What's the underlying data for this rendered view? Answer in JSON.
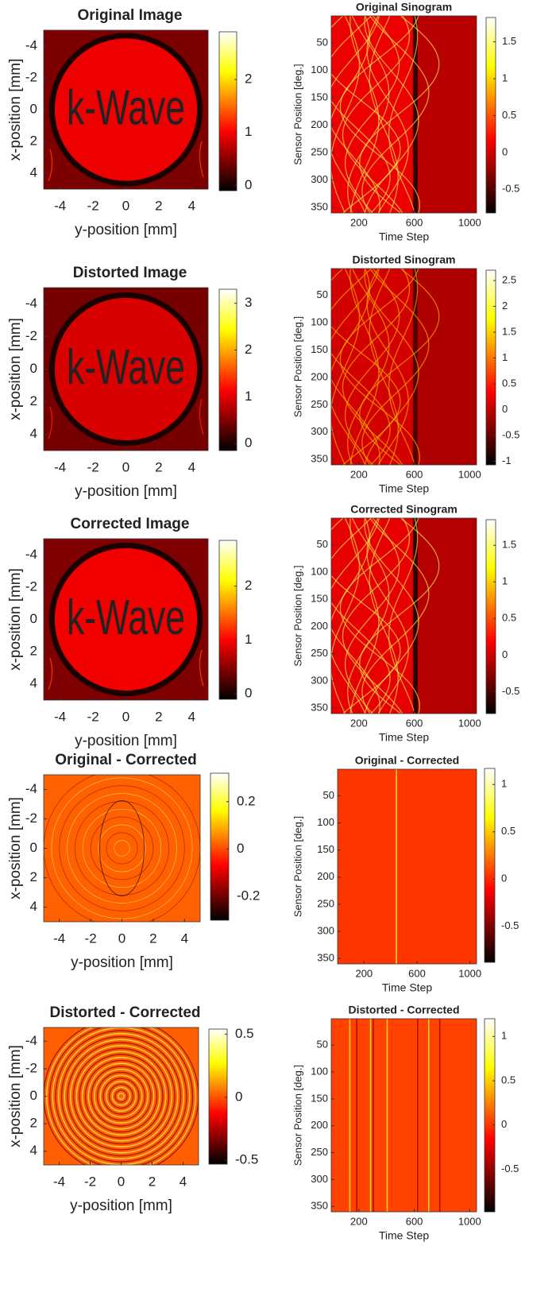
{
  "chart_data": [
    {
      "type": "image",
      "title": "Original Image",
      "annotation": "k-Wave",
      "xlabel": "y-position [mm]",
      "ylabel": "x-position [mm]",
      "xlim": [
        -5,
        5
      ],
      "ylim": [
        -5,
        5
      ],
      "yreverse": true,
      "xticks": [
        -4,
        -2,
        0,
        2,
        4
      ],
      "yticks": [
        -4,
        -2,
        0,
        2,
        4
      ],
      "colormap": "hot",
      "clim": [
        -0.1,
        2.9
      ],
      "cticks": [
        0,
        1,
        2
      ]
    },
    {
      "type": "image",
      "title": "Original Sinogram",
      "xlabel": "Time Step",
      "ylabel": "Sensor Position [deg.]",
      "xlim": [
        0,
        1050
      ],
      "ylim": [
        1,
        360
      ],
      "yreverse": true,
      "xticks": [
        200,
        600,
        1000
      ],
      "yticks": [
        50,
        100,
        150,
        200,
        250,
        300,
        350
      ],
      "colormap": "hot",
      "clim": [
        -0.82,
        1.83
      ],
      "cticks": [
        -0.5,
        0,
        0.5,
        1,
        1.5
      ]
    },
    {
      "type": "image",
      "title": "Distorted Image",
      "annotation": "k-Wave",
      "xlabel": "y-position [mm]",
      "ylabel": "x-position [mm]",
      "xlim": [
        -5,
        5
      ],
      "ylim": [
        -5,
        5
      ],
      "yreverse": true,
      "xticks": [
        -4,
        -2,
        0,
        2,
        4
      ],
      "yticks": [
        -4,
        -2,
        0,
        2,
        4
      ],
      "colormap": "hot",
      "clim": [
        -0.15,
        3.3
      ],
      "cticks": [
        0,
        1,
        2,
        3
      ]
    },
    {
      "type": "image",
      "title": "Distorted Sinogram",
      "xlabel": "Time Step",
      "ylabel": "Sensor Position [deg.]",
      "xlim": [
        0,
        1050
      ],
      "ylim": [
        1,
        360
      ],
      "yreverse": true,
      "xticks": [
        200,
        600,
        1000
      ],
      "yticks": [
        50,
        100,
        150,
        200,
        250,
        300,
        350
      ],
      "colormap": "hot",
      "clim": [
        -1.07,
        2.7
      ],
      "cticks": [
        -1,
        -0.5,
        0,
        0.5,
        1,
        1.5,
        2,
        2.5
      ]
    },
    {
      "type": "image",
      "title": "Corrected Image",
      "annotation": "k-Wave",
      "xlabel": "y-position [mm]",
      "ylabel": "x-position [mm]",
      "xlim": [
        -5,
        5
      ],
      "ylim": [
        -5,
        5
      ],
      "yreverse": true,
      "xticks": [
        -4,
        -2,
        0,
        2,
        4
      ],
      "yticks": [
        -4,
        -2,
        0,
        2,
        4
      ],
      "colormap": "hot",
      "clim": [
        -0.1,
        2.85
      ],
      "cticks": [
        0,
        1,
        2
      ]
    },
    {
      "type": "image",
      "title": "Corrected Sinogram",
      "xlabel": "Time Step",
      "ylabel": "Sensor Position [deg.]",
      "xlim": [
        0,
        1050
      ],
      "ylim": [
        1,
        360
      ],
      "yreverse": true,
      "xticks": [
        200,
        600,
        1000
      ],
      "yticks": [
        50,
        100,
        150,
        200,
        250,
        300,
        350
      ],
      "colormap": "hot",
      "clim": [
        -0.8,
        1.85
      ],
      "cticks": [
        -0.5,
        0,
        0.5,
        1,
        1.5
      ]
    },
    {
      "type": "image",
      "title": "Original - Corrected",
      "xlabel": "y-position [mm]",
      "ylabel": "x-position [mm]",
      "xlim": [
        -5,
        5
      ],
      "ylim": [
        -5,
        5
      ],
      "yreverse": true,
      "xticks": [
        -4,
        -2,
        0,
        2,
        4
      ],
      "yticks": [
        -4,
        -2,
        0,
        2,
        4
      ],
      "colormap": "hot",
      "clim": [
        -0.3,
        0.32
      ],
      "cticks": [
        -0.2,
        0,
        0.2
      ]
    },
    {
      "type": "image",
      "title": "Original - Corrected",
      "xlabel": "Time Step",
      "ylabel": "Sensor Position [deg.]",
      "xlim": [
        0,
        1050
      ],
      "ylim": [
        1,
        360
      ],
      "yreverse": true,
      "xticks": [
        200,
        600,
        1000
      ],
      "yticks": [
        50,
        100,
        150,
        200,
        250,
        300,
        350
      ],
      "colormap": "hot",
      "clim": [
        -0.88,
        1.17
      ],
      "cticks": [
        -0.5,
        0,
        0.5,
        1
      ]
    },
    {
      "type": "image",
      "title": "Distorted - Corrected",
      "xlabel": "y-position [mm]",
      "ylabel": "x-position [mm]",
      "xlim": [
        -5,
        5
      ],
      "ylim": [
        -5,
        5
      ],
      "yreverse": true,
      "xticks": [
        -4,
        -2,
        0,
        2,
        4
      ],
      "yticks": [
        -4,
        -2,
        0,
        2,
        4
      ],
      "colormap": "hot",
      "clim": [
        -0.53,
        0.54
      ],
      "cticks": [
        -0.5,
        0,
        0.5
      ]
    },
    {
      "type": "image",
      "title": "Distorted - Corrected",
      "xlabel": "Time Step",
      "ylabel": "Sensor Position [deg.]",
      "xlim": [
        0,
        1050
      ],
      "ylim": [
        1,
        360
      ],
      "yreverse": true,
      "xticks": [
        200,
        600,
        1000
      ],
      "yticks": [
        50,
        100,
        150,
        200,
        250,
        300,
        350
      ],
      "colormap": "hot",
      "clim": [
        -0.98,
        1.2
      ],
      "cticks": [
        -0.5,
        0,
        0.5,
        1
      ]
    }
  ]
}
